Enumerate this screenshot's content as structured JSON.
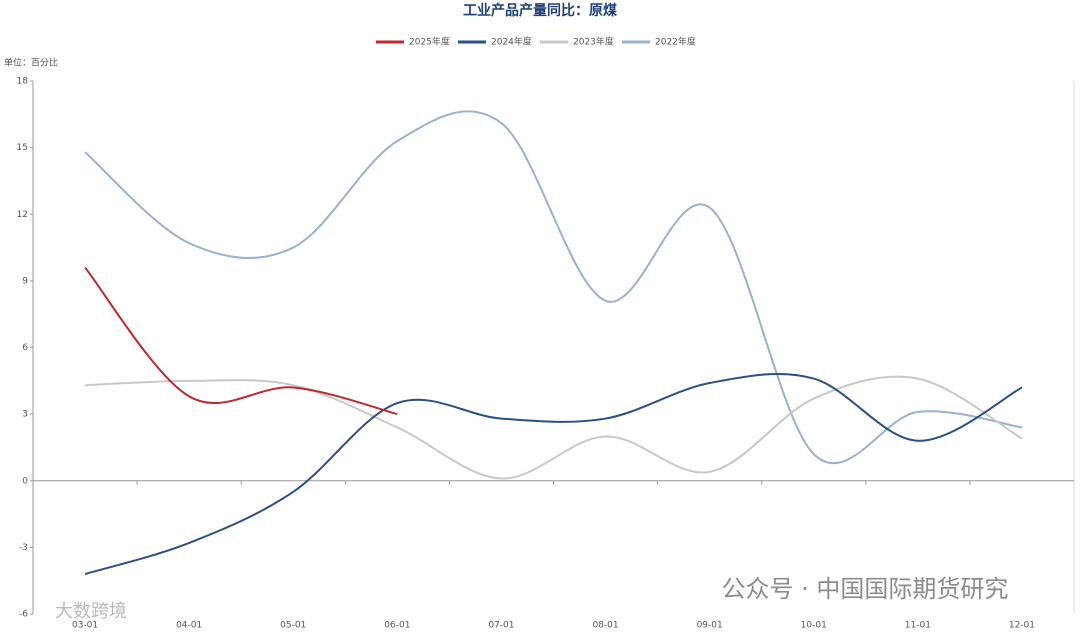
{
  "chart_data": {
    "type": "line",
    "title": "工业产品产量同比：原煤",
    "unit_label": "单位：百分比",
    "categories": [
      "03-01",
      "04-01",
      "05-01",
      "06-01",
      "07-01",
      "08-01",
      "09-01",
      "10-01",
      "11-01",
      "12-01"
    ],
    "series": [
      {
        "name": "2025年度",
        "color": "#c0282d",
        "values": [
          9.6,
          3.8,
          4.2,
          3.0,
          null,
          null,
          null,
          null,
          null,
          null
        ]
      },
      {
        "name": "2024年度",
        "color": "#2b4f86",
        "values": [
          -4.2,
          -2.8,
          -0.5,
          3.5,
          2.8,
          2.8,
          4.4,
          4.6,
          1.8,
          4.2
        ]
      },
      {
        "name": "2023年度",
        "color": "#c8c8c8",
        "values": [
          4.3,
          4.5,
          4.3,
          2.4,
          0.1,
          2.0,
          0.4,
          3.7,
          4.6,
          1.9
        ]
      },
      {
        "name": "2022年度",
        "color": "#9bb0d0",
        "values": [
          14.8,
          10.7,
          10.5,
          15.3,
          16.1,
          8.1,
          12.3,
          1.2,
          3.1,
          2.4
        ]
      }
    ],
    "ylim": [
      -6,
      18
    ],
    "yticks": [
      -6,
      -3,
      0,
      3,
      6,
      9,
      12,
      15,
      18
    ],
    "watermarks": [
      "公众号 · 中国国际期货研究",
      "大数跨境"
    ]
  }
}
